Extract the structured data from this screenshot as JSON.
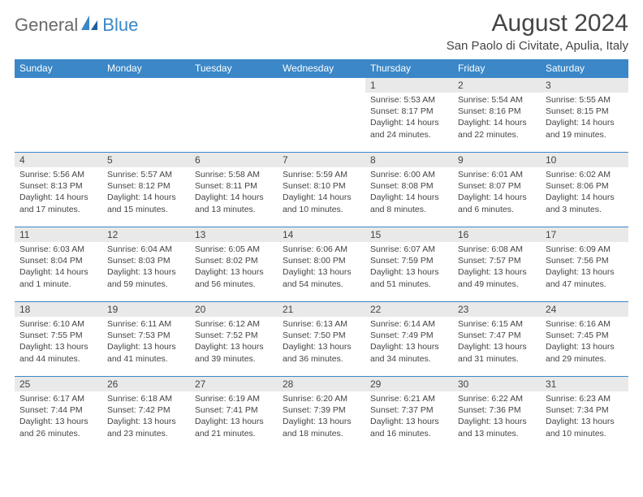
{
  "brand": {
    "general": "General",
    "blue": "Blue"
  },
  "title": "August 2024",
  "location": "San Paolo di Civitate, Apulia, Italy",
  "colors": {
    "header_bg": "#3b87c8",
    "header_text": "#ffffff",
    "day_number_bg": "#e9e9e9",
    "row_border": "#3b87c8",
    "text": "#444444",
    "title_text": "#454545"
  },
  "day_names": [
    "Sunday",
    "Monday",
    "Tuesday",
    "Wednesday",
    "Thursday",
    "Friday",
    "Saturday"
  ],
  "weeks": [
    [
      {
        "n": "",
        "sr": "",
        "ss": "",
        "dl": ""
      },
      {
        "n": "",
        "sr": "",
        "ss": "",
        "dl": ""
      },
      {
        "n": "",
        "sr": "",
        "ss": "",
        "dl": ""
      },
      {
        "n": "",
        "sr": "",
        "ss": "",
        "dl": ""
      },
      {
        "n": "1",
        "sr": "Sunrise: 5:53 AM",
        "ss": "Sunset: 8:17 PM",
        "dl": "Daylight: 14 hours and 24 minutes."
      },
      {
        "n": "2",
        "sr": "Sunrise: 5:54 AM",
        "ss": "Sunset: 8:16 PM",
        "dl": "Daylight: 14 hours and 22 minutes."
      },
      {
        "n": "3",
        "sr": "Sunrise: 5:55 AM",
        "ss": "Sunset: 8:15 PM",
        "dl": "Daylight: 14 hours and 19 minutes."
      }
    ],
    [
      {
        "n": "4",
        "sr": "Sunrise: 5:56 AM",
        "ss": "Sunset: 8:13 PM",
        "dl": "Daylight: 14 hours and 17 minutes."
      },
      {
        "n": "5",
        "sr": "Sunrise: 5:57 AM",
        "ss": "Sunset: 8:12 PM",
        "dl": "Daylight: 14 hours and 15 minutes."
      },
      {
        "n": "6",
        "sr": "Sunrise: 5:58 AM",
        "ss": "Sunset: 8:11 PM",
        "dl": "Daylight: 14 hours and 13 minutes."
      },
      {
        "n": "7",
        "sr": "Sunrise: 5:59 AM",
        "ss": "Sunset: 8:10 PM",
        "dl": "Daylight: 14 hours and 10 minutes."
      },
      {
        "n": "8",
        "sr": "Sunrise: 6:00 AM",
        "ss": "Sunset: 8:08 PM",
        "dl": "Daylight: 14 hours and 8 minutes."
      },
      {
        "n": "9",
        "sr": "Sunrise: 6:01 AM",
        "ss": "Sunset: 8:07 PM",
        "dl": "Daylight: 14 hours and 6 minutes."
      },
      {
        "n": "10",
        "sr": "Sunrise: 6:02 AM",
        "ss": "Sunset: 8:06 PM",
        "dl": "Daylight: 14 hours and 3 minutes."
      }
    ],
    [
      {
        "n": "11",
        "sr": "Sunrise: 6:03 AM",
        "ss": "Sunset: 8:04 PM",
        "dl": "Daylight: 14 hours and 1 minute."
      },
      {
        "n": "12",
        "sr": "Sunrise: 6:04 AM",
        "ss": "Sunset: 8:03 PM",
        "dl": "Daylight: 13 hours and 59 minutes."
      },
      {
        "n": "13",
        "sr": "Sunrise: 6:05 AM",
        "ss": "Sunset: 8:02 PM",
        "dl": "Daylight: 13 hours and 56 minutes."
      },
      {
        "n": "14",
        "sr": "Sunrise: 6:06 AM",
        "ss": "Sunset: 8:00 PM",
        "dl": "Daylight: 13 hours and 54 minutes."
      },
      {
        "n": "15",
        "sr": "Sunrise: 6:07 AM",
        "ss": "Sunset: 7:59 PM",
        "dl": "Daylight: 13 hours and 51 minutes."
      },
      {
        "n": "16",
        "sr": "Sunrise: 6:08 AM",
        "ss": "Sunset: 7:57 PM",
        "dl": "Daylight: 13 hours and 49 minutes."
      },
      {
        "n": "17",
        "sr": "Sunrise: 6:09 AM",
        "ss": "Sunset: 7:56 PM",
        "dl": "Daylight: 13 hours and 47 minutes."
      }
    ],
    [
      {
        "n": "18",
        "sr": "Sunrise: 6:10 AM",
        "ss": "Sunset: 7:55 PM",
        "dl": "Daylight: 13 hours and 44 minutes."
      },
      {
        "n": "19",
        "sr": "Sunrise: 6:11 AM",
        "ss": "Sunset: 7:53 PM",
        "dl": "Daylight: 13 hours and 41 minutes."
      },
      {
        "n": "20",
        "sr": "Sunrise: 6:12 AM",
        "ss": "Sunset: 7:52 PM",
        "dl": "Daylight: 13 hours and 39 minutes."
      },
      {
        "n": "21",
        "sr": "Sunrise: 6:13 AM",
        "ss": "Sunset: 7:50 PM",
        "dl": "Daylight: 13 hours and 36 minutes."
      },
      {
        "n": "22",
        "sr": "Sunrise: 6:14 AM",
        "ss": "Sunset: 7:49 PM",
        "dl": "Daylight: 13 hours and 34 minutes."
      },
      {
        "n": "23",
        "sr": "Sunrise: 6:15 AM",
        "ss": "Sunset: 7:47 PM",
        "dl": "Daylight: 13 hours and 31 minutes."
      },
      {
        "n": "24",
        "sr": "Sunrise: 6:16 AM",
        "ss": "Sunset: 7:45 PM",
        "dl": "Daylight: 13 hours and 29 minutes."
      }
    ],
    [
      {
        "n": "25",
        "sr": "Sunrise: 6:17 AM",
        "ss": "Sunset: 7:44 PM",
        "dl": "Daylight: 13 hours and 26 minutes."
      },
      {
        "n": "26",
        "sr": "Sunrise: 6:18 AM",
        "ss": "Sunset: 7:42 PM",
        "dl": "Daylight: 13 hours and 23 minutes."
      },
      {
        "n": "27",
        "sr": "Sunrise: 6:19 AM",
        "ss": "Sunset: 7:41 PM",
        "dl": "Daylight: 13 hours and 21 minutes."
      },
      {
        "n": "28",
        "sr": "Sunrise: 6:20 AM",
        "ss": "Sunset: 7:39 PM",
        "dl": "Daylight: 13 hours and 18 minutes."
      },
      {
        "n": "29",
        "sr": "Sunrise: 6:21 AM",
        "ss": "Sunset: 7:37 PM",
        "dl": "Daylight: 13 hours and 16 minutes."
      },
      {
        "n": "30",
        "sr": "Sunrise: 6:22 AM",
        "ss": "Sunset: 7:36 PM",
        "dl": "Daylight: 13 hours and 13 minutes."
      },
      {
        "n": "31",
        "sr": "Sunrise: 6:23 AM",
        "ss": "Sunset: 7:34 PM",
        "dl": "Daylight: 13 hours and 10 minutes."
      }
    ]
  ]
}
